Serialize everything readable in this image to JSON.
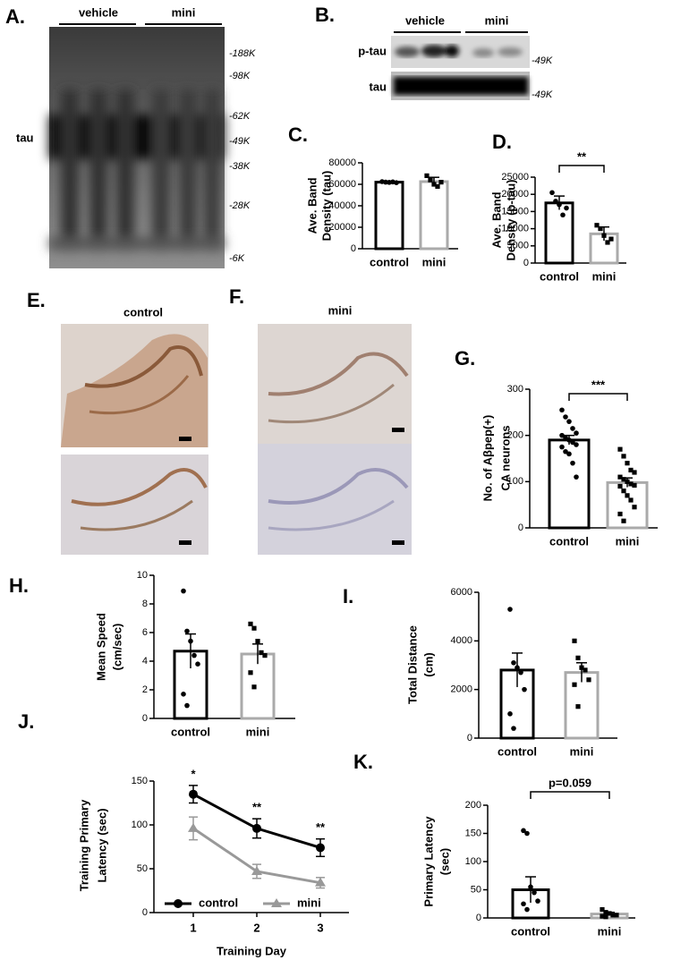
{
  "blot_a": {
    "panel": "A.",
    "groups": [
      "vehicle",
      "mini"
    ],
    "band_label": "tau",
    "markers": [
      "-188K",
      "-98K",
      "-62K",
      "-49K",
      "-38K",
      "-28K",
      "-6K"
    ]
  },
  "blot_b": {
    "panel": "B.",
    "groups": [
      "vehicle",
      "mini"
    ],
    "rows": [
      "p-tau",
      "tau"
    ],
    "markers": [
      "-49K",
      "-49K"
    ]
  },
  "histology": [
    {
      "panel": "E.",
      "title": "control"
    },
    {
      "panel": "F.",
      "title": "mini"
    }
  ],
  "chart_data": [
    {
      "type": "bar",
      "panel": "C.",
      "ylabel": [
        "Ave. Band",
        "Density (tau)"
      ],
      "categories": [
        "control",
        "mini"
      ],
      "values": [
        62000,
        62500
      ],
      "errors": [
        1000,
        4000
      ],
      "points": [
        [
          62500,
          62000,
          61800,
          62200,
          61500
        ],
        [
          68000,
          64000,
          60000,
          58000,
          62000
        ]
      ],
      "colors": [
        "#000000",
        "#aaaaaa"
      ],
      "ylim": [
        0,
        80000
      ],
      "yticks": [
        0,
        20000,
        40000,
        60000,
        80000
      ]
    },
    {
      "type": "bar",
      "panel": "D.",
      "ylabel": [
        "Ave. Band",
        "Density (p-tau)"
      ],
      "categories": [
        "control",
        "mini"
      ],
      "values": [
        17500,
        8500
      ],
      "errors": [
        2000,
        2000
      ],
      "points": [
        [
          20500,
          18000,
          17000,
          14000,
          16000
        ],
        [
          11000,
          10000,
          8000,
          6000,
          7000
        ]
      ],
      "colors": [
        "#000000",
        "#aaaaaa"
      ],
      "ylim": [
        0,
        25000
      ],
      "yticks": [
        0,
        5000,
        10000,
        15000,
        20000,
        25000
      ],
      "significance": "**"
    },
    {
      "type": "bar",
      "panel": "G.",
      "ylabel": [
        "No. of Aβpep(+)",
        "CA neurons"
      ],
      "categories": [
        "control",
        "mini"
      ],
      "values": [
        190,
        98
      ],
      "errors": [
        10,
        10
      ],
      "points": [
        [
          255,
          240,
          230,
          215,
          205,
          200,
          195,
          190,
          185,
          180,
          175,
          165,
          160,
          140,
          110
        ],
        [
          170,
          155,
          140,
          125,
          120,
          110,
          105,
          100,
          95,
          92,
          90,
          80,
          70,
          60,
          45,
          30,
          15
        ]
      ],
      "colors": [
        "#000000",
        "#aaaaaa"
      ],
      "ylim": [
        0,
        300
      ],
      "yticks": [
        0,
        100,
        200,
        300
      ],
      "significance": "***"
    },
    {
      "type": "bar",
      "panel": "H.",
      "ylabel": [
        "Mean Speed",
        "(cm/sec)"
      ],
      "categories": [
        "control",
        "mini"
      ],
      "values": [
        4.7,
        4.5
      ],
      "errors": [
        1.2,
        0.7
      ],
      "points": [
        [
          8.9,
          6.1,
          5.4,
          4.4,
          3.8,
          1.7,
          0.9
        ],
        [
          6.6,
          6.3,
          5.4,
          4.6,
          4.4,
          3.2,
          2.2
        ]
      ],
      "colors": [
        "#000000",
        "#aaaaaa"
      ],
      "ylim": [
        0,
        10
      ],
      "yticks": [
        0,
        2,
        4,
        6,
        8,
        10
      ]
    },
    {
      "type": "bar",
      "panel": "I.",
      "ylabel": [
        "Total Distance",
        "(cm)"
      ],
      "categories": [
        "control",
        "mini"
      ],
      "values": [
        2800,
        2700
      ],
      "errors": [
        700,
        400
      ],
      "points": [
        [
          5300,
          3100,
          2900,
          2700,
          2000,
          1000,
          400
        ],
        [
          4000,
          3300,
          2900,
          2800,
          2400,
          2200,
          1300
        ]
      ],
      "colors": [
        "#000000",
        "#aaaaaa"
      ],
      "ylim": [
        0,
        6000
      ],
      "yticks": [
        0,
        2000,
        4000,
        6000
      ]
    },
    {
      "type": "line",
      "panel": "J.",
      "ylabel": [
        "Training Primary",
        "Latency (sec)"
      ],
      "xlabel": "Training Day",
      "categories": [
        "1",
        "2",
        "3"
      ],
      "series": [
        {
          "name": "control",
          "color": "#000000",
          "values": [
            135,
            96,
            74
          ],
          "errors": [
            10,
            11,
            10
          ]
        },
        {
          "name": "mini",
          "color": "#999999",
          "values": [
            96,
            47,
            34
          ],
          "errors": [
            13,
            8,
            6
          ]
        }
      ],
      "annotations": [
        "*",
        "**",
        "**"
      ],
      "ylim": [
        0,
        150
      ],
      "yticks": [
        0,
        50,
        100,
        150
      ]
    },
    {
      "type": "bar",
      "panel": "K.",
      "ylabel": [
        "Primary Latency",
        "(sec)"
      ],
      "categories": [
        "control",
        "mini"
      ],
      "values": [
        50,
        7
      ],
      "errors": [
        23,
        3
      ],
      "points": [
        [
          155,
          150,
          55,
          45,
          30,
          25,
          15
        ],
        [
          15,
          10,
          8,
          5,
          5,
          3,
          2
        ]
      ],
      "colors": [
        "#000000",
        "#aaaaaa"
      ],
      "ylim": [
        0,
        200
      ],
      "yticks": [
        0,
        50,
        100,
        150,
        200
      ],
      "significance": "p=0.059"
    }
  ]
}
